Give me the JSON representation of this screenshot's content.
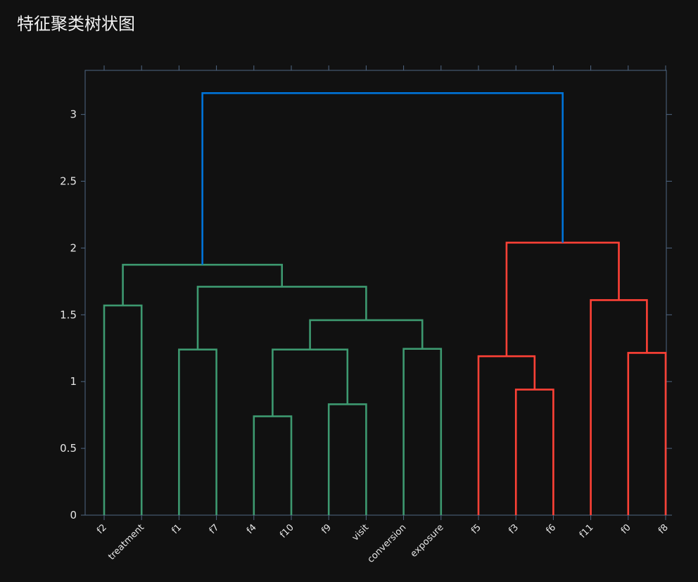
{
  "chart_data": {
    "type": "dendrogram",
    "title": "特征聚类树状图",
    "xlabel": "",
    "ylabel": "",
    "ylim": [
      0,
      3.33
    ],
    "y_ticks": [
      0,
      0.5,
      1,
      1.5,
      2,
      2.5,
      3
    ],
    "y_tick_labels": [
      "0",
      "0.5",
      "1",
      "1.5",
      "2",
      "2.5",
      "3"
    ],
    "leaves": [
      "f2",
      "treatment",
      "f1",
      "f7",
      "f4",
      "f10",
      "f9",
      "visit",
      "conversion",
      "exposure",
      "f5",
      "f3",
      "f6",
      "f11",
      "f0",
      "f8"
    ],
    "merges": [
      {
        "id": "A",
        "left": "f4",
        "right": "f10",
        "height": 0.74,
        "color": "#3d9970"
      },
      {
        "id": "B",
        "left": "f9",
        "right": "visit",
        "height": 0.83,
        "color": "#3d9970"
      },
      {
        "id": "C",
        "left": "A",
        "right": "B",
        "height": 1.24,
        "color": "#3d9970"
      },
      {
        "id": "D",
        "left": "conversion",
        "right": "exposure",
        "height": 1.245,
        "color": "#3d9970"
      },
      {
        "id": "E",
        "left": "C",
        "right": "D",
        "height": 1.46,
        "color": "#3d9970"
      },
      {
        "id": "F",
        "left": "f1",
        "right": "f7",
        "height": 1.24,
        "color": "#3d9970"
      },
      {
        "id": "G",
        "left": "F",
        "right": "E",
        "height": 1.71,
        "color": "#3d9970"
      },
      {
        "id": "H",
        "left": "f2",
        "right": "treatment",
        "height": 1.57,
        "color": "#3d9970"
      },
      {
        "id": "I",
        "left": "H",
        "right": "G",
        "height": 1.875,
        "color": "#3d9970"
      },
      {
        "id": "J",
        "left": "f6",
        "right": "f3",
        "height": 0.94,
        "color": "#ff4136"
      },
      {
        "id": "K",
        "left": "f5",
        "right": "J",
        "height": 1.19,
        "color": "#ff4136"
      },
      {
        "id": "L",
        "left": "f0",
        "right": "f8",
        "height": 1.215,
        "color": "#ff4136"
      },
      {
        "id": "M",
        "left": "f11",
        "right": "L",
        "height": 1.61,
        "color": "#ff4136"
      },
      {
        "id": "N",
        "left": "K",
        "right": "M",
        "height": 2.04,
        "color": "#ff4136"
      },
      {
        "id": "O",
        "left": "I",
        "right": "N",
        "height": 3.16,
        "color": "#0074d9"
      }
    ],
    "grid": false,
    "colors": {
      "background": "#111111",
      "axis": "#506784",
      "green": "#3d9970",
      "red": "#ff4136",
      "blue": "#0074d9"
    }
  }
}
